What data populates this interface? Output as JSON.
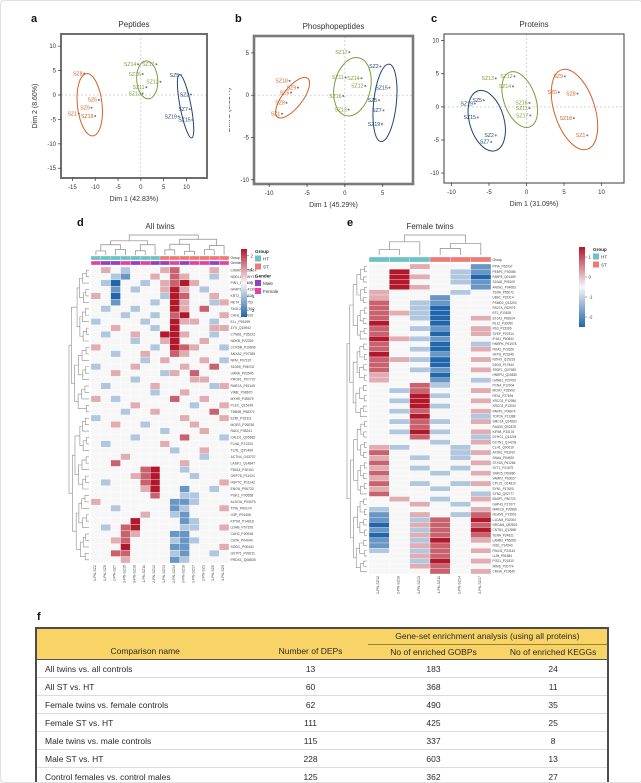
{
  "panels": {
    "a": "a",
    "b": "b",
    "c": "c",
    "d": "d",
    "e": "e",
    "f": "f"
  },
  "palette": {
    "orange": "#d4622a",
    "green": "#78a03c",
    "blue": "#1e4471",
    "heat_pos": "#b2182b",
    "heat_mid": "#f7f7f7",
    "heat_neg": "#2166ac",
    "ht": "#6cc2c4",
    "st": "#ec7b76",
    "male": "#9440c4",
    "female": "#e5429f",
    "table_header_bg": "#f8d467"
  },
  "chart_data": [
    {
      "id": "a",
      "type": "scatter",
      "title": "Peptides",
      "xlabel": "Dim 1 (42.83%)",
      "ylabel": "Dim 2 (8.60%)",
      "xlim": [
        -17.5,
        14.5
      ],
      "ylim": [
        -17,
        12.5
      ],
      "xticks": [
        -15,
        -10,
        -5,
        0,
        5,
        10
      ],
      "yticks": [
        -15,
        -10,
        -5,
        0,
        5,
        10
      ],
      "groups": [
        {
          "name": "orange",
          "color": "#d4622a",
          "ellipse": {
            "cx": -11.2,
            "cy": -2.0,
            "rx": 2.7,
            "ry": 6.4,
            "angle": -6
          },
          "points": [
            {
              "l": "SZ8",
              "x": -12.4,
              "y": 4.4
            },
            {
              "l": "SZ6",
              "x": -9.2,
              "y": -1.0
            },
            {
              "l": "SZ9",
              "x": -10.8,
              "y": -2.6
            },
            {
              "l": "SZ1",
              "x": -13.6,
              "y": -3.8
            },
            {
              "l": "SZ18",
              "x": -10.0,
              "y": -4.3
            }
          ]
        },
        {
          "name": "green",
          "color": "#78a03c",
          "ellipse": {
            "cx": 1.4,
            "cy": 3.1,
            "rx": 2.3,
            "ry": 3.9,
            "angle": -4
          },
          "points": [
            {
              "l": "SZ14",
              "x": -0.6,
              "y": 6.3
            },
            {
              "l": "SZ17",
              "x": 3.4,
              "y": 6.3
            },
            {
              "l": "SZ16",
              "x": 0.4,
              "y": 4.3
            },
            {
              "l": "SZ12",
              "x": 4.3,
              "y": 2.7
            },
            {
              "l": "SZ11",
              "x": 1.2,
              "y": 1.6
            },
            {
              "l": "SZ13",
              "x": 0.4,
              "y": 0.3
            }
          ]
        },
        {
          "name": "blue",
          "color": "#1e4471",
          "ellipse": {
            "cx": 9.8,
            "cy": -2.3,
            "rx": 1.2,
            "ry": 6.6,
            "angle": -11
          },
          "points": [
            {
              "l": "SZ5",
              "x": 8.8,
              "y": 4.1
            },
            {
              "l": "SZ2",
              "x": 11.0,
              "y": 0.1
            },
            {
              "l": "SZ7",
              "x": 10.7,
              "y": -2.9
            },
            {
              "l": "SZ19",
              "x": 8.3,
              "y": -4.4
            },
            {
              "l": "SZ15",
              "x": 11.3,
              "y": -5.1
            }
          ]
        }
      ]
    },
    {
      "id": "b",
      "type": "scatter",
      "title": "Phosphopeptides",
      "xlabel": "Dim 1 (45.29%)",
      "ylabel": "Dim 2 (8.53%)",
      "xlim": [
        -12,
        9
      ],
      "ylim": [
        -10.5,
        7
      ],
      "xticks": [
        -10,
        -5,
        0,
        5
      ],
      "yticks": [
        -10,
        -5,
        0,
        5
      ],
      "groups": [
        {
          "name": "orange",
          "color": "#d4622a",
          "ellipse": {
            "cx": -6.9,
            "cy": -0.3,
            "rx": 1.3,
            "ry": 2.9,
            "angle": 38
          },
          "points": [
            {
              "l": "SZ18",
              "x": -7.3,
              "y": 1.7
            },
            {
              "l": "SZ9",
              "x": -6.2,
              "y": 0.9
            },
            {
              "l": "SZ6",
              "x": -7.1,
              "y": 0.3
            },
            {
              "l": "SZ8",
              "x": -7.7,
              "y": -0.9
            },
            {
              "l": "SZ1",
              "x": -8.3,
              "y": -2.2
            }
          ]
        },
        {
          "name": "green",
          "color": "#78a03c",
          "ellipse": {
            "cx": 1.0,
            "cy": 1.0,
            "rx": 2.4,
            "ry": 3.5,
            "angle": 12
          },
          "points": [
            {
              "l": "SZ17",
              "x": 0.6,
              "y": 5.1
            },
            {
              "l": "SZ11",
              "x": 0.1,
              "y": 2.1
            },
            {
              "l": "SZ14",
              "x": 2.2,
              "y": 2.0
            },
            {
              "l": "SZ12",
              "x": 2.7,
              "y": 1.1
            },
            {
              "l": "SZ16",
              "x": -0.2,
              "y": -0.1
            },
            {
              "l": "SZ13",
              "x": 0.5,
              "y": -1.7
            }
          ]
        },
        {
          "name": "blue",
          "color": "#1e4471",
          "ellipse": {
            "cx": 5.3,
            "cy": -0.9,
            "rx": 1.5,
            "ry": 4.6,
            "angle": 6
          },
          "points": [
            {
              "l": "SZ2",
              "x": 4.7,
              "y": 3.4
            },
            {
              "l": "SZ15",
              "x": 5.9,
              "y": 0.9
            },
            {
              "l": "SZ5",
              "x": 4.5,
              "y": -0.6
            },
            {
              "l": "SZ7",
              "x": 5.1,
              "y": -1.8
            },
            {
              "l": "SZ19",
              "x": 4.9,
              "y": -3.4
            }
          ]
        }
      ]
    },
    {
      "id": "c",
      "type": "scatter",
      "title": "Proteins",
      "xlabel": "Dim 1 (31.09%)",
      "ylabel": "Dim 2 (11.86%)",
      "xlim": [
        -11,
        13
      ],
      "ylim": [
        -11.5,
        11
      ],
      "xticks": [
        -10,
        -5,
        0,
        5,
        10
      ],
      "yticks": [
        -10,
        -5,
        0,
        5,
        10
      ],
      "groups": [
        {
          "name": "blue",
          "color": "#1e4471",
          "ellipse": {
            "cx": -5.3,
            "cy": -2.1,
            "rx": 2.3,
            "ry": 4.7,
            "angle": -16
          },
          "points": [
            {
              "l": "SZ19",
              "x": -6.9,
              "y": 0.5
            },
            {
              "l": "SZ5",
              "x": -5.7,
              "y": 1.0
            },
            {
              "l": "SZ15",
              "x": -6.5,
              "y": -1.6
            },
            {
              "l": "SZ2",
              "x": -4.1,
              "y": -4.3
            },
            {
              "l": "SZ7",
              "x": -4.7,
              "y": -5.3
            }
          ]
        },
        {
          "name": "green",
          "color": "#78a03c",
          "ellipse": {
            "cx": -0.9,
            "cy": 1.1,
            "rx": 2.1,
            "ry": 4.4,
            "angle": -20
          },
          "points": [
            {
              "l": "SZ13",
              "x": -4.1,
              "y": 4.3
            },
            {
              "l": "SZ12",
              "x": -1.6,
              "y": 4.6
            },
            {
              "l": "SZ14",
              "x": -1.8,
              "y": 3.1
            },
            {
              "l": "SZ16",
              "x": 0.4,
              "y": 0.6
            },
            {
              "l": "SZ11",
              "x": 0.4,
              "y": -0.2
            },
            {
              "l": "SZ17",
              "x": 0.5,
              "y": -1.3
            }
          ]
        },
        {
          "name": "orange",
          "color": "#d4622a",
          "ellipse": {
            "cx": 6.4,
            "cy": -0.4,
            "rx": 2.7,
            "ry": 6.3,
            "angle": -18
          },
          "points": [
            {
              "l": "SZ9",
              "x": 5.1,
              "y": 4.6
            },
            {
              "l": "SZ6",
              "x": 4.3,
              "y": 2.2
            },
            {
              "l": "SZ8",
              "x": 6.8,
              "y": 2.0
            },
            {
              "l": "SZ18",
              "x": 6.3,
              "y": -1.7
            },
            {
              "l": "SZ1",
              "x": 8.1,
              "y": -4.3
            }
          ]
        }
      ]
    },
    {
      "id": "d",
      "type": "heatmap",
      "title": "All twins",
      "values_encoding": {
        "a": -3,
        "b": -2,
        "c": -1,
        "d": 0,
        "e": 1,
        "f": 2,
        "g": 3
      },
      "legend": {
        "scale_ticks": [
          2,
          1,
          0,
          -1,
          -2
        ],
        "scale_range": [
          2.5,
          -2.5
        ],
        "blocks": [
          {
            "title": "Group",
            "items": [
              {
                "label": "HT",
                "key": "HT"
              },
              {
                "label": "ST",
                "key": "ST"
              }
            ]
          },
          {
            "title": "Gender",
            "items": [
              {
                "label": "Male",
                "key": "Male"
              },
              {
                "label": "Female",
                "key": "Female"
              }
            ]
          }
        ]
      },
      "annotation_colors": {
        "HT": "#6cc2c4",
        "ST": "#ec7b76",
        "Male": "#9440c4",
        "Female": "#e5429f"
      },
      "annotation_rows": [
        {
          "name": "Group",
          "values": [
            "HT",
            "HT",
            "HT",
            "HT",
            "HT",
            "HT",
            "HT",
            "ST",
            "ST",
            "ST",
            "ST",
            "ST",
            "ST",
            "ST"
          ]
        },
        {
          "name": "Gender",
          "values": [
            "Female",
            "Male",
            "Male",
            "Female",
            "Male",
            "Female",
            "Male",
            "Male",
            "Female",
            "Male",
            "Female",
            "Female",
            "Male",
            "Female"
          ]
        }
      ],
      "col_labels": [
        "1-PN-SZ2",
        "1-PN-SZ5",
        "2-PN-SZ7",
        "2-PN-SZ15",
        "3-PN-SZ19",
        "1-PN-SZ11",
        "2-PN-SZ12",
        "1-PN-SZ13",
        "2-PN-SZ14",
        "3-PN-SZ16",
        "1-PN-SZ17",
        "2-PN-SZ1",
        "3-PN-SZ6",
        "3-PN-SZ9"
      ],
      "row_labels": [
        "CAMK5_Q08E14",
        "NDEL1_Q9NYT2",
        "PIN1_Q13526",
        "GFAP1_P14136",
        "KRT2_A2AB28",
        "RET4_P02753",
        "TAGL2_P37802",
        "CAH1_P00915",
        "ELL_P55199",
        "ZYX_Q15942",
        "CTNB1_P35222",
        "NDKB_P22392",
        "COX5B_P10606",
        "ANXA2_P07355",
        "NFM_P07197",
        "S10A9_P06702",
        "LMNA_P02545",
        "PROF1_P07737",
        "RAB7A_P51149",
        "VIME_P08670",
        "MYH9_P35579",
        "PLEC_Q15149",
        "TBB4B_P68371",
        "EZRI_P15311",
        "MOES_P26038",
        "RADI_P35241",
        "CALD1_Q05682",
        "FLNA_P21333",
        "TLN1_Q9Y490",
        "ACTN4_O43707",
        "LASP1_Q14847",
        "PDIA3_P30101",
        "GRP78_P11021",
        "HSP7C_P11142",
        "ENOA_P06733",
        "PGK1_P00558",
        "ALDOA_P04075",
        "TPIS_P60174",
        "G3P_P04406",
        "KPYM_P14618",
        "LDHB_P07195",
        "CAH2_P00918",
        "CATA_P04040",
        "SODC_P00441",
        "GSTP1_P09211",
        "PRDX1_Q06830"
      ],
      "matrix": [
        "dedcdddefddded",
        "ddcbddedfeddcd",
        "dcaddcdefgeddd",
        "ddbdcddegedcdd",
        "edaddddcgfdded",
        "ddbdddcdgeddce",
        "dcddcdddgedfdd",
        "dddcddcdfgddde",
        "cddddcddgeedcd",
        "ddedddcdgdddee",
        "dcddeddggeddcd",
        "ddddcddegddedd",
        "edddddcdgfeddc",
        "ddcddeddfedddd",
        "dddddcdedddedc",
        "cdddeddddeddfd",
        "ddeddddcedfddd",
        "ddddcdddddeedd",
        "dcddddedddddce",
        "ddddddcddedddd",
        "edcdddddfddedd",
        "ddddedddddcdde",
        "dddcddedddddfd",
        "cddddddddeddde",
        "ddeddcddddeddd",
        "dddddddcdddedd",
        "ddddcddddfdddc",
        "dcdddddedddddd",
        "ddddddddcddedd",
        "dddedddddddcdd",
        "ddfddddddedddd",
        "dddddfgddcdddd",
        "ddddefgdddcddd",
        "dcdddfgdddddde",
        "dddddegddbddcd",
        "ddddddfddccddd",
        "edddddddbbcddd",
        "ddcdddddbcddde",
        "dddddeddcbdddd",
        "ddddgddddbcddd",
        "dcdfgddddccdde",
        "dddfedddbbdddd",
        "ddefddddcbcddd",
        "dddgddddbbddde",
        "ddffddddcbddcd",
        "dddeddddbcdddd"
      ]
    },
    {
      "id": "e",
      "type": "heatmap",
      "title": "Female twins",
      "values_encoding": {
        "a": -3,
        "b": -2,
        "c": -1,
        "d": 0,
        "e": 1,
        "f": 2,
        "g": 3
      },
      "legend": {
        "scale_ticks": [
          1,
          0,
          -1,
          -2
        ],
        "scale_range": [
          1.5,
          -2.5
        ],
        "blocks": [
          {
            "title": "Group",
            "items": [
              {
                "label": "HT",
                "key": "HT"
              },
              {
                "label": "ST",
                "key": "ST"
              }
            ]
          }
        ]
      },
      "annotation_colors": {
        "HT": "#6cc2c4",
        "ST": "#ec7b76"
      },
      "annotation_rows": [
        {
          "name": "Group",
          "values": [
            "HT",
            "HT",
            "HT",
            "ST",
            "ST",
            "ST"
          ]
        }
      ],
      "col_labels": [
        "1-PN-SZ12",
        "2-PN-SZ16",
        "3-PN-SZ13",
        "1-PN-SZ11",
        "2-PN-SZ14",
        "3-PN-SZ17"
      ],
      "row_labels": [
        "PPIA_P62937",
        "PEBP1_P30086",
        "FABP5_Q01469",
        "S10A8_P05109",
        "ANXA1_P04083",
        "TERA_P55072",
        "UBA1_P22314",
        "PSMD2_Q13200",
        "RS27A_P62979",
        "EF2_P13639",
        "EF1A1_P68104",
        "RL12_P30050",
        "RS3_P23396",
        "SYEP_P07814",
        "IF4A1_P60842",
        "HNRPK_P61978",
        "ROA2_P22626",
        "SFPQ_P23246",
        "NONO_Q15233",
        "DDX5_P17844",
        "SRSF1_Q07955",
        "HNRPU_Q00839",
        "LMNB1_P20700",
        "PCNA_P12004",
        "MCM7_P33993",
        "RFA1_P27694",
        "XRCC6_P12956",
        "XRCC5_P13010",
        "PARP1_P09874",
        "TOP2A_P11388",
        "SMC1A_Q14683",
        "RAD50_Q92878",
        "KIF5B_P33176",
        "DYHC1_Q14204",
        "DCTN1_Q14203",
        "CLH1_Q00610",
        "AP2B1_P63010",
        "SNAA_P54920",
        "STX1B_P61266",
        "SYT1_P21579",
        "SNP25_P60880",
        "VAMP2_P63027",
        "CPLX1_O14810",
        "SYN1_P17600",
        "SYN2_Q92777",
        "BASP1_P80723",
        "GAP43_P17677",
        "MARCS_P29966",
        "NCAM1_P13591",
        "L1CAM_P32004",
        "NRCAM_Q92823",
        "CNTN1_Q12860",
        "TENA_P24821",
        "LAMB2_P55268",
        "NID1_P14543",
        "FBLN1_P23142",
        "LUM_P51884",
        "PGS1_P21810",
        "MIME_P20774",
        "CMGA_P10645"
      ],
      "matrix": [
        "ddeddb",
        "dgddcb",
        "dgedca",
        "dgddcb",
        "dgeddb",
        "edddcd",
        "eddbdd",
        "fdcbdd",
        "fdcadd",
        "fecadd",
        "fdcade",
        "gddadd",
        "fdcbde",
        "fddade",
        "gecbdd",
        "fddadc",
        "fdcade",
        "gddbdd",
        "fecade",
        "fddadd",
        "fdcbde",
        "eddadd",
        "eddbdc",
        "ddfcdd",
        "dcfdde",
        "ddgcdd",
        "dcgdde",
        "ddgcdd",
        "dcfdde",
        "ddgddc",
        "dcfcde",
        "ddfddd",
        "dcgcde",
        "ddfddc",
        "dddcde",
        "ecddcd",
        "fdddce",
        "edcdcd",
        "fdddde",
        "edcdcd",
        "fddcde",
        "eddddd",
        "fdcdce",
        "eddcdd",
        "fddddc",
        "dedcde",
        "ddedcd",
        "cdddde",
        "bdedcf",
        "bdcfdg",
        "adefdf",
        "bdcfdg",
        "adefdf",
        "bdcgde",
        "bdefdd",
        "cdcfde",
        "ddefdd",
        "ddcgde",
        "ddefdd",
        "dddfde"
      ]
    },
    {
      "id": "f",
      "type": "table",
      "span_header": "Gene-set enrichment analysis (using all proteins)",
      "columns": [
        "Comparison name",
        "Number of DEPs",
        "No of enriched GOBPs",
        "No of enriched KEGGs"
      ],
      "rows": [
        [
          "All twins vs. all controls",
          "13",
          "183",
          "24"
        ],
        [
          "All ST vs. HT",
          "60",
          "368",
          "11"
        ],
        [
          "Female twins vs. female controls",
          "62",
          "490",
          "35"
        ],
        [
          "Female ST vs. HT",
          "111",
          "425",
          "25"
        ],
        [
          "Male twins vs. male controls",
          "115",
          "337",
          "8"
        ],
        [
          "Male ST vs. HT",
          "228",
          "603",
          "13"
        ],
        [
          "Control females vs. control males",
          "125",
          "362",
          "27"
        ]
      ]
    }
  ]
}
